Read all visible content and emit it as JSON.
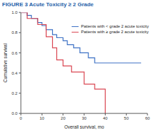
{
  "chart_data": {
    "type": "line",
    "title": "FIGURE 3 Acute Toxicity ≥ 2 Grade",
    "x_label": "Overall survival, mo",
    "y_label": "Cumulative survival",
    "line_style": "step",
    "legend": "upper right",
    "grid": false,
    "xlim": [
      0,
      60
    ],
    "xticks": [
      0,
      10,
      20,
      30,
      40,
      50,
      60
    ],
    "ylim": [
      0,
      1
    ],
    "yticks": [
      {
        "value": 0,
        "label": "0.0"
      },
      {
        "value": 0.2,
        "label": "0.2"
      },
      {
        "value": 0.4,
        "label": "0.4"
      },
      {
        "value": 0.6,
        "label": "0.6"
      },
      {
        "value": 0.8,
        "label": "0.8"
      },
      {
        "value": 1,
        "label": "1.0"
      }
    ],
    "series": [
      {
        "name": "Patients with < grade 2 acute toxicity",
        "color": "#3a6fc4",
        "x": [
          0,
          3,
          5,
          8,
          10,
          12,
          15,
          17,
          20,
          22,
          25,
          28,
          32,
          35,
          57
        ],
        "values": [
          1,
          0.97,
          0.94,
          0.9,
          0.87,
          0.83,
          0.78,
          0.75,
          0.72,
          0.68,
          0.65,
          0.6,
          0.55,
          0.5,
          0.5
        ]
      },
      {
        "name": "Patients with ≥ grade 2 acute toxicity",
        "color": "#d9434f",
        "x": [
          0,
          3,
          8,
          12,
          15,
          17,
          20,
          24,
          30,
          35,
          40
        ],
        "values": [
          1,
          0.94,
          0.88,
          0.76,
          0.65,
          0.53,
          0.47,
          0.41,
          0.29,
          0.24,
          0
        ]
      }
    ]
  }
}
